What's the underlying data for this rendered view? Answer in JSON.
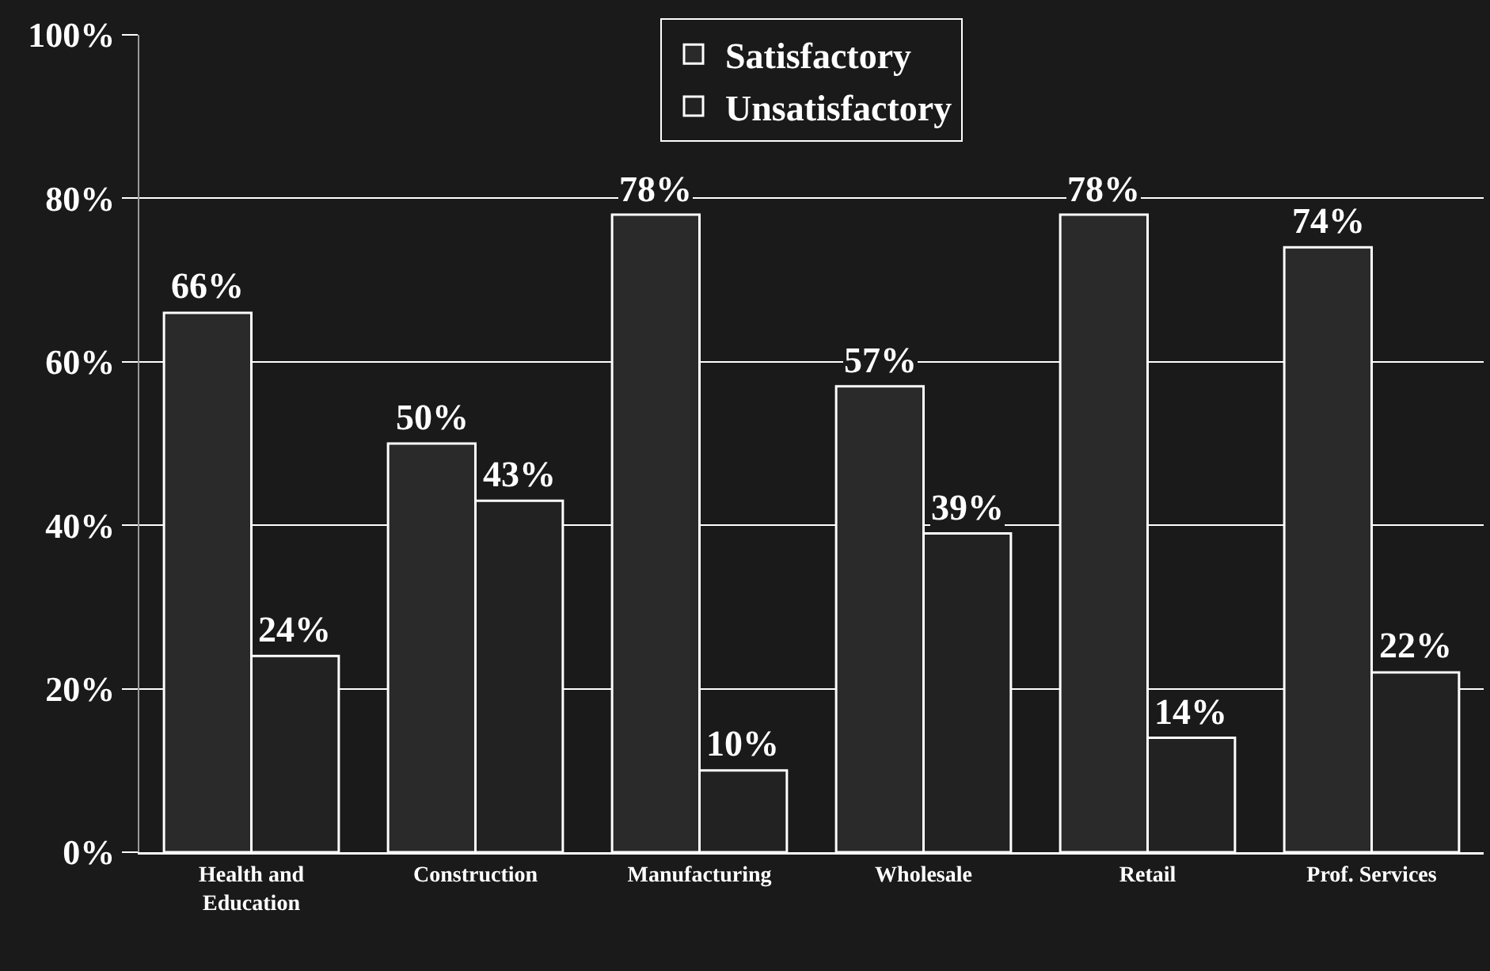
{
  "chart_data": {
    "type": "bar",
    "categories": [
      "Health and Education",
      "Construction",
      "Manufacturing",
      "Wholesale",
      "Retail",
      "Prof. Services"
    ],
    "series": [
      {
        "name": "Satisfactory",
        "color": "#2a2a2a",
        "values": [
          66,
          50,
          78,
          57,
          78,
          74
        ],
        "value_labels": [
          "66%",
          "50%",
          "78%",
          "57%",
          "78%",
          "74%"
        ]
      },
      {
        "name": "Unsatisfactory",
        "color": "#222222",
        "values": [
          24,
          43,
          10,
          39,
          14,
          22
        ],
        "value_labels": [
          "24%",
          "43%",
          "10%",
          "39%",
          "14%",
          "22%"
        ]
      }
    ],
    "ylim": [
      0,
      100
    ],
    "yticks": [
      {
        "value": 0,
        "label": "0%"
      },
      {
        "value": 20,
        "label": "20%"
      },
      {
        "value": 40,
        "label": "40%"
      },
      {
        "value": 60,
        "label": "60%"
      },
      {
        "value": 80,
        "label": "80%"
      },
      {
        "value": 100,
        "label": "100%"
      }
    ],
    "grid": "y",
    "legend": "top"
  }
}
